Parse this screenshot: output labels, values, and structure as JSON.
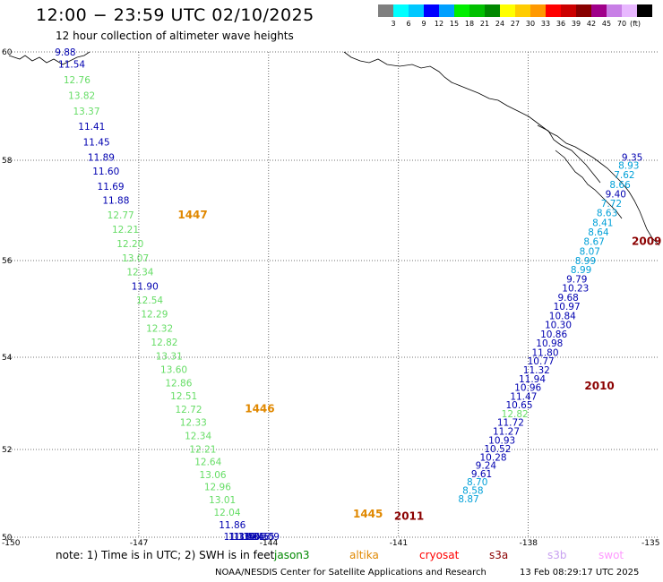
{
  "header": {
    "title": "12:00 − 23:59 UTC 02/10/2025",
    "subtitle": "12 hour collection of altimeter wave heights"
  },
  "legend": {
    "colors": [
      "#7f7f7f",
      "#00ffff",
      "#00c8ff",
      "#0000ff",
      "#00a0ff",
      "#00ee00",
      "#00c000",
      "#008800",
      "#ffff00",
      "#ffcc00",
      "#ff9900",
      "#ff0000",
      "#cc0000",
      "#880000",
      "#a0008a",
      "#c87fe6",
      "#e8b8ff",
      "#000000"
    ],
    "labels": [
      "3",
      "6",
      "9",
      "12",
      "15",
      "18",
      "21",
      "24",
      "27",
      "30",
      "33",
      "36",
      "39",
      "42",
      "45",
      "70"
    ],
    "unit": "(ft)"
  },
  "map": {
    "lat_labels": [
      "60",
      "58",
      "56",
      "54",
      "52",
      "50"
    ],
    "lon_labels": [
      "-150",
      "-147",
      "-144",
      "-141",
      "-138",
      "-135"
    ]
  },
  "tracks": [
    {
      "color": "#0000b0",
      "text": "9.88",
      "lat": 59.93,
      "lon": -148.94
    },
    {
      "color": "#0000b0",
      "text": "11.54",
      "lat": 59.71,
      "lon": -148.86
    },
    {
      "color": "#66dd66",
      "text": "12.76",
      "lat": 59.42,
      "lon": -148.74
    },
    {
      "color": "#66dd66",
      "text": "13.82",
      "lat": 59.13,
      "lon": -148.63
    },
    {
      "color": "#66dd66",
      "text": "13.37",
      "lat": 58.84,
      "lon": -148.52
    },
    {
      "color": "#0000b0",
      "text": "11.41",
      "lat": 58.56,
      "lon": -148.4
    },
    {
      "color": "#0000b0",
      "text": "11.45",
      "lat": 58.27,
      "lon": -148.29
    },
    {
      "color": "#0000b0",
      "text": "11.89",
      "lat": 57.99,
      "lon": -148.18
    },
    {
      "color": "#0000b0",
      "text": "11.60",
      "lat": 57.71,
      "lon": -148.07
    },
    {
      "color": "#0000b0",
      "text": "11.69",
      "lat": 57.41,
      "lon": -147.96
    },
    {
      "color": "#0000b0",
      "text": "11.88",
      "lat": 57.13,
      "lon": -147.84
    },
    {
      "color": "#66dd66",
      "text": "12.77",
      "lat": 56.84,
      "lon": -147.73
    },
    {
      "color": "#66dd66",
      "text": "12.21",
      "lat": 56.55,
      "lon": -147.62
    },
    {
      "color": "#66dd66",
      "text": "12.20",
      "lat": 56.27,
      "lon": -147.51
    },
    {
      "color": "#66dd66",
      "text": "13.07",
      "lat": 55.98,
      "lon": -147.39
    },
    {
      "color": "#66dd66",
      "text": "12.34",
      "lat": 55.69,
      "lon": -147.28
    },
    {
      "color": "#0000b0",
      "text": "11.90",
      "lat": 55.4,
      "lon": -147.17
    },
    {
      "color": "#66dd66",
      "text": "12.54",
      "lat": 55.11,
      "lon": -147.06
    },
    {
      "color": "#66dd66",
      "text": "12.29",
      "lat": 54.82,
      "lon": -146.95
    },
    {
      "color": "#66dd66",
      "text": "12.32",
      "lat": 54.53,
      "lon": -146.83
    },
    {
      "color": "#66dd66",
      "text": "12.82",
      "lat": 54.24,
      "lon": -146.72
    },
    {
      "color": "#66dd66",
      "text": "13.31",
      "lat": 53.95,
      "lon": -146.61
    },
    {
      "color": "#66dd66",
      "text": "13.60",
      "lat": 53.66,
      "lon": -146.5
    },
    {
      "color": "#66dd66",
      "text": "12.86",
      "lat": 53.37,
      "lon": -146.39
    },
    {
      "color": "#66dd66",
      "text": "12.51",
      "lat": 53.09,
      "lon": -146.27
    },
    {
      "color": "#66dd66",
      "text": "12.72",
      "lat": 52.8,
      "lon": -146.16
    },
    {
      "color": "#66dd66",
      "text": "12.33",
      "lat": 52.51,
      "lon": -146.05
    },
    {
      "color": "#66dd66",
      "text": "12.34",
      "lat": 52.22,
      "lon": -145.94
    },
    {
      "color": "#66dd66",
      "text": "12.21",
      "lat": 51.93,
      "lon": -145.83
    },
    {
      "color": "#66dd66",
      "text": "12.64",
      "lat": 51.64,
      "lon": -145.71
    },
    {
      "color": "#66dd66",
      "text": "13.06",
      "lat": 51.35,
      "lon": -145.6
    },
    {
      "color": "#66dd66",
      "text": "12.96",
      "lat": 51.07,
      "lon": -145.49
    },
    {
      "color": "#66dd66",
      "text": "13.01",
      "lat": 50.78,
      "lon": -145.38
    },
    {
      "color": "#66dd66",
      "text": "12.04",
      "lat": 50.49,
      "lon": -145.27
    },
    {
      "color": "#0000b0",
      "text": "11.86",
      "lat": 50.2,
      "lon": -145.15
    },
    {
      "color": "#0000b0",
      "text": "11.33",
      "lat": 49.91,
      "lon": -145.04
    },
    {
      "color": "#0000b0",
      "text": "11.34",
      "lat": 49.62,
      "lon": -144.93
    },
    {
      "color": "#0000b0",
      "text": "11.56",
      "lat": 49.33,
      "lon": -144.82
    },
    {
      "color": "#0000b0",
      "text": "11.36",
      "lat": 49.04,
      "lon": -144.71
    },
    {
      "color": "#0000b0",
      "text": "10.46",
      "lat": 48.76,
      "lon": -144.59
    },
    {
      "color": "#0000b0",
      "text": "10.55",
      "lat": 48.47,
      "lon": -144.48
    },
    {
      "color": "#0000b0",
      "text": "11.09",
      "lat": 48.18,
      "lon": -144.37
    },
    {
      "color": "#0000b0",
      "text": "9.35",
      "lat": 57.99,
      "lon": -135.84
    },
    {
      "color": "#00a0d8",
      "text": "8.93",
      "lat": 57.83,
      "lon": -135.92
    },
    {
      "color": "#00a0d8",
      "text": "7.62",
      "lat": 57.64,
      "lon": -136.02
    },
    {
      "color": "#00a0d8",
      "text": "8.66",
      "lat": 57.45,
      "lon": -136.12
    },
    {
      "color": "#0000b0",
      "text": "9.40",
      "lat": 57.26,
      "lon": -136.22
    },
    {
      "color": "#00a0d8",
      "text": "7.72",
      "lat": 57.07,
      "lon": -136.32
    },
    {
      "color": "#00a0d8",
      "text": "8.63",
      "lat": 56.88,
      "lon": -136.42
    },
    {
      "color": "#00a0d8",
      "text": "8.41",
      "lat": 56.69,
      "lon": -136.52
    },
    {
      "color": "#00a0d8",
      "text": "8.64",
      "lat": 56.5,
      "lon": -136.62
    },
    {
      "color": "#00a0d8",
      "text": "8.67",
      "lat": 56.31,
      "lon": -136.72
    },
    {
      "color": "#00a0d8",
      "text": "8.07",
      "lat": 56.12,
      "lon": -136.82
    },
    {
      "color": "#00a0d8",
      "text": "8.99",
      "lat": 55.93,
      "lon": -136.92
    },
    {
      "color": "#00a0d8",
      "text": "8.99",
      "lat": 55.74,
      "lon": -137.02
    },
    {
      "color": "#0000b0",
      "text": "9.79",
      "lat": 55.55,
      "lon": -137.12
    },
    {
      "color": "#0000b0",
      "text": "10.23",
      "lat": 55.36,
      "lon": -137.22
    },
    {
      "color": "#0000b0",
      "text": "9.68",
      "lat": 55.17,
      "lon": -137.32
    },
    {
      "color": "#0000b0",
      "text": "10.97",
      "lat": 54.98,
      "lon": -137.42
    },
    {
      "color": "#0000b0",
      "text": "10.84",
      "lat": 54.79,
      "lon": -137.52
    },
    {
      "color": "#0000b0",
      "text": "10.30",
      "lat": 54.6,
      "lon": -137.62
    },
    {
      "color": "#0000b0",
      "text": "10.86",
      "lat": 54.41,
      "lon": -137.72
    },
    {
      "color": "#0000b0",
      "text": "10.98",
      "lat": 54.22,
      "lon": -137.82
    },
    {
      "color": "#0000b0",
      "text": "11.80",
      "lat": 54.03,
      "lon": -137.92
    },
    {
      "color": "#0000b0",
      "text": "10.77",
      "lat": 53.84,
      "lon": -138.02
    },
    {
      "color": "#0000b0",
      "text": "11.32",
      "lat": 53.65,
      "lon": -138.12
    },
    {
      "color": "#0000b0",
      "text": "11.94",
      "lat": 53.46,
      "lon": -138.22
    },
    {
      "color": "#0000b0",
      "text": "10.96",
      "lat": 53.27,
      "lon": -138.32
    },
    {
      "color": "#0000b0",
      "text": "11.47",
      "lat": 53.08,
      "lon": -138.42
    },
    {
      "color": "#0000b0",
      "text": "10.65",
      "lat": 52.89,
      "lon": -138.52
    },
    {
      "color": "#66dd66",
      "text": "12.82",
      "lat": 52.7,
      "lon": -138.62
    },
    {
      "color": "#0000b0",
      "text": "11.72",
      "lat": 52.51,
      "lon": -138.72
    },
    {
      "color": "#0000b0",
      "text": "11.27",
      "lat": 52.32,
      "lon": -138.82
    },
    {
      "color": "#0000b0",
      "text": "10.93",
      "lat": 52.13,
      "lon": -138.92
    },
    {
      "color": "#0000b0",
      "text": "10.52",
      "lat": 51.94,
      "lon": -139.02
    },
    {
      "color": "#0000b0",
      "text": "10.28",
      "lat": 51.75,
      "lon": -139.12
    },
    {
      "color": "#0000b0",
      "text": "9.24",
      "lat": 51.56,
      "lon": -139.22
    },
    {
      "color": "#0000b0",
      "text": "9.61",
      "lat": 51.37,
      "lon": -139.32
    },
    {
      "color": "#00a0d8",
      "text": "8.70",
      "lat": 51.18,
      "lon": -139.42
    },
    {
      "color": "#00a0d8",
      "text": "8.58",
      "lat": 50.99,
      "lon": -139.52
    },
    {
      "color": "#00a0d8",
      "text": "8.87",
      "lat": 50.8,
      "lon": -139.62
    }
  ],
  "pass_labels": [
    {
      "text": "1447",
      "color": "#e08800",
      "lat": 56.84,
      "lon": -146.1
    },
    {
      "text": "1446",
      "color": "#e08800",
      "lat": 52.81,
      "lon": -144.55
    },
    {
      "text": "1445",
      "color": "#e08800",
      "lat": 50.45,
      "lon": -142.05
    },
    {
      "text": "2009",
      "color": "#8b0000",
      "lat": 56.31,
      "lon": -135.4
    },
    {
      "text": "2010",
      "color": "#8b0000",
      "lat": 53.3,
      "lon": -136.7
    },
    {
      "text": "2011",
      "color": "#8b0000",
      "lat": 50.4,
      "lon": -141.1
    }
  ],
  "notes": {
    "text": "note: 1) Time is in UTC; 2) SWH is in feet",
    "satellites": [
      {
        "name": "jason3",
        "color": "#008800",
        "left": 306
      },
      {
        "name": "altika",
        "color": "#e08800",
        "left": 390
      },
      {
        "name": "cryosat",
        "color": "#ff0000",
        "left": 468
      },
      {
        "name": "s3a",
        "color": "#8b0000",
        "left": 546
      },
      {
        "name": "s3b",
        "color": "#c8a0f0",
        "left": 611
      },
      {
        "name": "swot",
        "color": "#ff99ff",
        "left": 668
      }
    ]
  },
  "footer": {
    "org": "NOAA/NESDIS Center for Satellite Applications and Research",
    "timestamp": "13 Feb 08:29:17 UTC 2025"
  }
}
